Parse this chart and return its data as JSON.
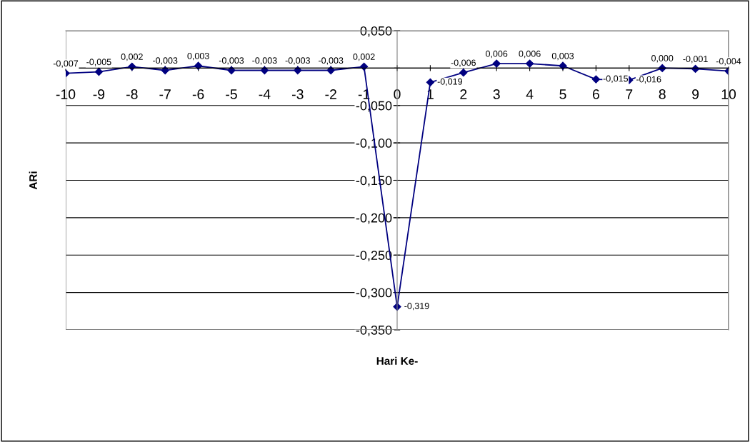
{
  "chart_data": {
    "type": "line",
    "xlabel": "Hari Ke-",
    "ylabel": "ARi",
    "x": [
      -10,
      -9,
      -8,
      -7,
      -6,
      -5,
      -4,
      -3,
      -2,
      -1,
      0,
      1,
      2,
      3,
      4,
      5,
      6,
      7,
      8,
      9,
      10
    ],
    "series": [
      {
        "color": "#000080",
        "values": [
          -0.007,
          -0.005,
          0.002,
          -0.003,
          0.003,
          -0.003,
          -0.003,
          -0.003,
          -0.003,
          0.002,
          -0.319,
          -0.019,
          -0.006,
          0.006,
          0.006,
          0.003,
          -0.015,
          -0.016,
          0.0,
          -0.001,
          -0.004
        ],
        "value_labels": [
          "-0,007",
          "-0,005",
          "0,002",
          "-0,003",
          "0,003",
          "-0,003",
          "-0,003",
          "-0,003",
          "-0,003",
          "0,002",
          "-0,319",
          "-0,019",
          "-0,006",
          "0,006",
          "0,006",
          "0,003",
          "-0,015",
          "-0,016",
          "0,000",
          "-0,001",
          "-0,004"
        ]
      }
    ],
    "xlim": [
      -10,
      10
    ],
    "xticks": [
      -10,
      -9,
      -8,
      -7,
      -6,
      -5,
      -4,
      -3,
      -2,
      -1,
      0,
      1,
      2,
      3,
      4,
      5,
      6,
      7,
      8,
      9,
      10
    ],
    "ylim": [
      -0.35,
      0.05
    ],
    "yticks": [
      {
        "value": 0.05,
        "label": "0,050"
      },
      {
        "value": 0,
        "label": null
      },
      {
        "value": -0.05,
        "label": "-0,050"
      },
      {
        "value": -0.1,
        "label": "-0,100"
      },
      {
        "value": -0.15,
        "label": "-0,150"
      },
      {
        "value": -0.2,
        "label": "-0,200"
      },
      {
        "value": -0.25,
        "label": "-0,250"
      },
      {
        "value": -0.3,
        "label": "-0,300"
      },
      {
        "value": -0.35,
        "label": "-0,350"
      }
    ],
    "grid": "y",
    "marker": "diamond",
    "line_style": "solid"
  }
}
